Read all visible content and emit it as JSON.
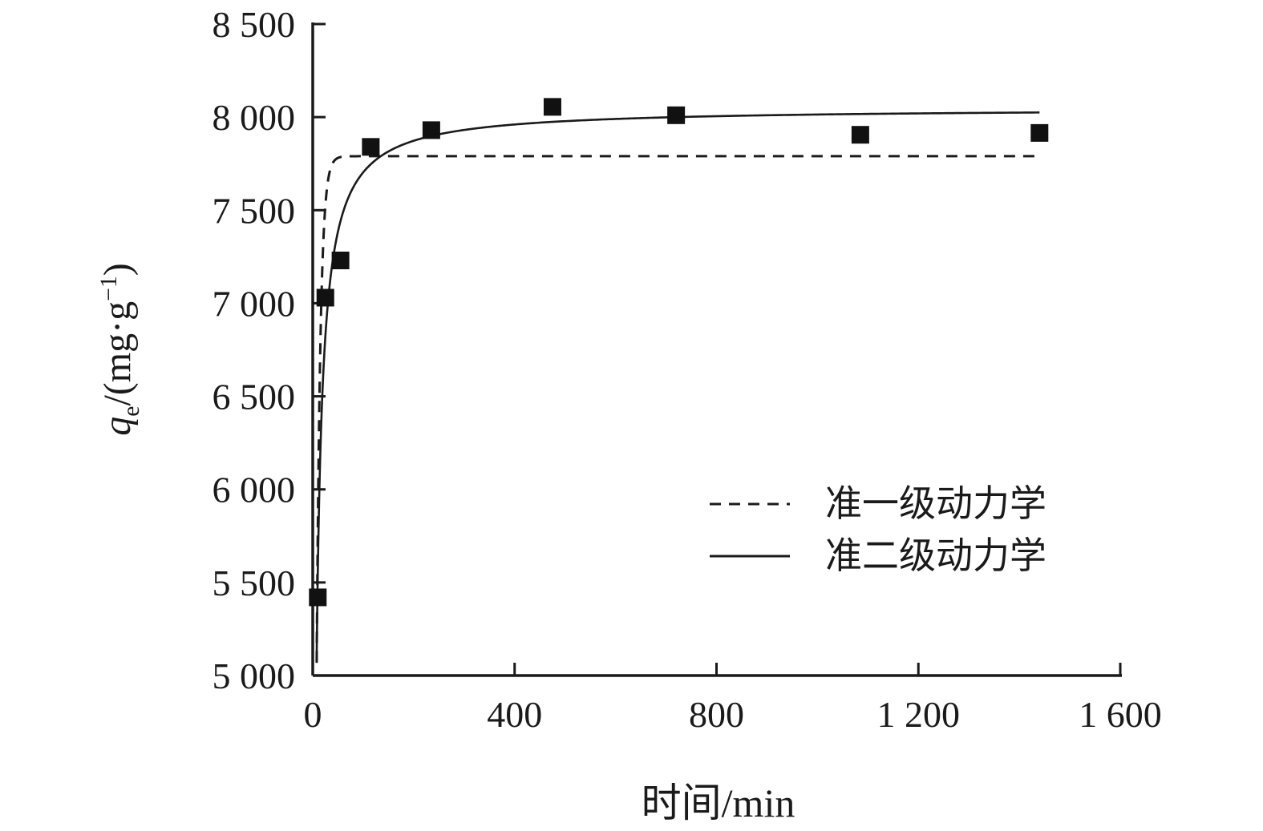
{
  "chart_data": {
    "type": "line",
    "title": "",
    "xlabel": "时间/min",
    "ylabel": "qe/(mg·g−1)",
    "ylabel_parts": {
      "var": "q",
      "sub": "e",
      "mid": "/(mg·g",
      "sup": "−1",
      "end": ")"
    },
    "xlim": [
      0,
      1600
    ],
    "ylim": [
      5000,
      8500
    ],
    "grid": false,
    "x_ticks": [
      {
        "v": 0,
        "label": "0"
      },
      {
        "v": 400,
        "label": "400"
      },
      {
        "v": 800,
        "label": "800"
      },
      {
        "v": 1200,
        "label": "1 200"
      },
      {
        "v": 1600,
        "label": "1 600"
      }
    ],
    "y_ticks": [
      {
        "v": 5000,
        "label": "5 000"
      },
      {
        "v": 5500,
        "label": "5 500"
      },
      {
        "v": 6000,
        "label": "6 000"
      },
      {
        "v": 6500,
        "label": "6 500"
      },
      {
        "v": 7000,
        "label": "7 000"
      },
      {
        "v": 7500,
        "label": "7 500"
      },
      {
        "v": 8000,
        "label": "8 000"
      },
      {
        "v": 8500,
        "label": "8 500"
      }
    ],
    "scatter_points": [
      [
        10,
        5420
      ],
      [
        25,
        7030
      ],
      [
        55,
        7230
      ],
      [
        115,
        7840
      ],
      [
        235,
        7930
      ],
      [
        475,
        8055
      ],
      [
        720,
        8010
      ],
      [
        1085,
        7905
      ],
      [
        1440,
        7915
      ]
    ],
    "fit_curves": [
      {
        "name": "准一级动力学",
        "model": "pseudo-first-order",
        "style": "dashed",
        "qe": 7790,
        "k": 0.135,
        "t_end": 1435
      },
      {
        "name": "准二级动力学",
        "model": "pseudo-second-order",
        "style": "solid",
        "qe": 8050,
        "tau": 4.5,
        "t_end": 1440
      }
    ],
    "legend": {
      "position": "inside-right",
      "items": [
        {
          "label": "准一级动力学",
          "line": "dashed"
        },
        {
          "label": "准二级动力学",
          "line": "solid"
        }
      ]
    }
  },
  "colors": {
    "background": "#ffffff",
    "stroke": "#1a1a1a",
    "marker": "#111111"
  }
}
